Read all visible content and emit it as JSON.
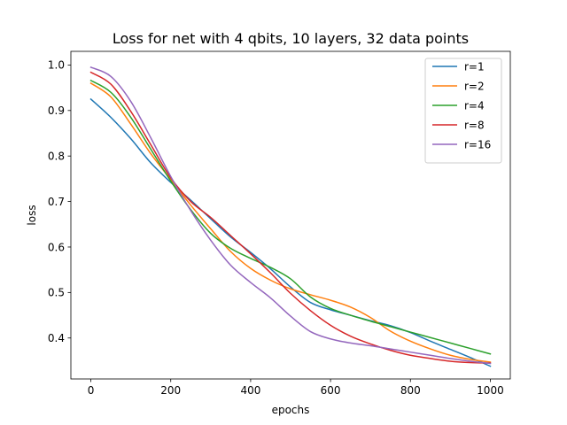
{
  "chart_data": {
    "type": "line",
    "title": "Loss for net with 4 qbits, 10 layers, 32 data points",
    "xlabel": "epochs",
    "ylabel": "loss",
    "xlim": [
      -50,
      1050
    ],
    "ylim": [
      0.31,
      1.03
    ],
    "xticks": [
      0,
      200,
      400,
      600,
      800,
      1000
    ],
    "xtick_labels": [
      "0",
      "200",
      "400",
      "600",
      "800",
      "1000"
    ],
    "yticks": [
      0.4,
      0.5,
      0.6,
      0.7,
      0.8,
      0.9,
      1.0
    ],
    "ytick_labels": [
      "0.4",
      "0.5",
      "0.6",
      "0.7",
      "0.8",
      "0.9",
      "1.0"
    ],
    "grid": false,
    "legend_position": "top-right",
    "series": [
      {
        "name": "r=1",
        "color": "#1f77b4",
        "x": [
          0,
          50,
          100,
          150,
          200,
          250,
          300,
          350,
          400,
          450,
          500,
          550,
          600,
          650,
          700,
          750,
          800,
          850,
          900,
          950,
          1000
        ],
        "y": [
          0.925,
          0.885,
          0.838,
          0.785,
          0.742,
          0.703,
          0.662,
          0.622,
          0.588,
          0.552,
          0.512,
          0.478,
          0.462,
          0.45,
          0.438,
          0.427,
          0.412,
          0.393,
          0.375,
          0.357,
          0.338
        ]
      },
      {
        "name": "r=2",
        "color": "#ff7f0e",
        "x": [
          0,
          50,
          100,
          150,
          200,
          250,
          300,
          350,
          400,
          450,
          500,
          550,
          600,
          650,
          700,
          750,
          800,
          850,
          900,
          950,
          1000
        ],
        "y": [
          0.96,
          0.93,
          0.87,
          0.805,
          0.748,
          0.692,
          0.64,
          0.59,
          0.553,
          0.527,
          0.508,
          0.495,
          0.483,
          0.468,
          0.445,
          0.415,
          0.393,
          0.376,
          0.362,
          0.353,
          0.347
        ]
      },
      {
        "name": "r=4",
        "color": "#2ca02c",
        "x": [
          0,
          50,
          100,
          150,
          200,
          250,
          300,
          350,
          400,
          450,
          500,
          550,
          600,
          650,
          700,
          750,
          800,
          850,
          900,
          950,
          1000
        ],
        "y": [
          0.966,
          0.94,
          0.885,
          0.815,
          0.745,
          0.682,
          0.63,
          0.597,
          0.575,
          0.555,
          0.53,
          0.49,
          0.465,
          0.45,
          0.437,
          0.425,
          0.413,
          0.401,
          0.389,
          0.377,
          0.365
        ]
      },
      {
        "name": "r=8",
        "color": "#d62728",
        "x": [
          0,
          50,
          100,
          150,
          200,
          250,
          300,
          350,
          400,
          450,
          500,
          550,
          600,
          650,
          700,
          750,
          800,
          850,
          900,
          950,
          1000
        ],
        "y": [
          0.984,
          0.958,
          0.898,
          0.825,
          0.752,
          0.7,
          0.665,
          0.625,
          0.585,
          0.543,
          0.498,
          0.46,
          0.428,
          0.404,
          0.387,
          0.373,
          0.362,
          0.355,
          0.349,
          0.346,
          0.345
        ]
      },
      {
        "name": "r=16",
        "color": "#9467bd",
        "x": [
          0,
          50,
          100,
          150,
          200,
          250,
          300,
          350,
          400,
          450,
          500,
          550,
          600,
          650,
          700,
          750,
          800,
          850,
          900,
          950,
          1000
        ],
        "y": [
          0.995,
          0.975,
          0.92,
          0.84,
          0.755,
          0.68,
          0.615,
          0.56,
          0.522,
          0.488,
          0.448,
          0.414,
          0.398,
          0.389,
          0.383,
          0.376,
          0.369,
          0.362,
          0.355,
          0.349,
          0.344
        ]
      }
    ]
  }
}
